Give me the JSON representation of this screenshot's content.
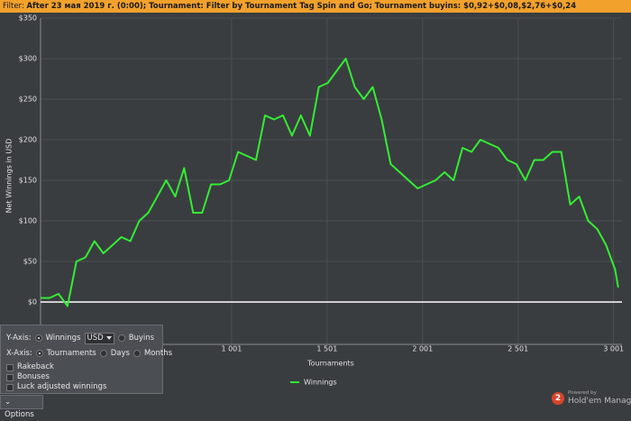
{
  "filter_bar": {
    "label": "Filter:",
    "text": "After 23 мая 2019 г. (0:00); Tournament: Filter by Tournament Tag  Spin and Go; Tournament buyins: $0,92+$0,08,$2,76+$0,24"
  },
  "chart_data": {
    "type": "line",
    "ylabel": "Net Winnings in USD",
    "xlabel": "Tournaments",
    "x": [
      1,
      48,
      95,
      142,
      189,
      236,
      283,
      330,
      377,
      424,
      471,
      518,
      565,
      612,
      659,
      706,
      753,
      800,
      847,
      894,
      941,
      988,
      1035,
      1082,
      1129,
      1176,
      1223,
      1270,
      1317,
      1364,
      1411,
      1458,
      1505,
      1552,
      1599,
      1646,
      1693,
      1740,
      1787,
      1834,
      1881,
      1928,
      1975,
      2022,
      2069,
      2116,
      2163,
      2210,
      2257,
      2304,
      2351,
      2398,
      2445,
      2492,
      2539,
      2586,
      2633,
      2680,
      2727,
      2774,
      2821,
      2868,
      2915,
      2962,
      3009,
      3025
    ],
    "series": [
      {
        "name": "Winnings",
        "color": "#33ee33",
        "values": [
          5,
          5,
          10,
          -5,
          50,
          55,
          75,
          60,
          70,
          80,
          75,
          100,
          110,
          130,
          150,
          130,
          165,
          110,
          110,
          145,
          145,
          150,
          185,
          180,
          175,
          230,
          225,
          230,
          205,
          230,
          205,
          265,
          270,
          285,
          300,
          265,
          250,
          265,
          225,
          170,
          160,
          150,
          140,
          145,
          150,
          160,
          150,
          190,
          185,
          200,
          195,
          190,
          175,
          170,
          150,
          175,
          175,
          185,
          185,
          120,
          130,
          100,
          90,
          70,
          40,
          18
        ]
      }
    ],
    "xlim": [
      1,
      3045
    ],
    "ylim": [
      0,
      350
    ],
    "xticks": [
      {
        "value": 1001,
        "label": "1 001"
      },
      {
        "value": 1501,
        "label": "1 501"
      },
      {
        "value": 2001,
        "label": "2 001"
      },
      {
        "value": 2501,
        "label": "2 501"
      },
      {
        "value": 3001,
        "label": "3 001"
      }
    ],
    "yticks": [
      {
        "value": 350,
        "label": "$350"
      },
      {
        "value": 300,
        "label": "$300"
      },
      {
        "value": 250,
        "label": "$250"
      },
      {
        "value": 200,
        "label": "$200"
      },
      {
        "value": 150,
        "label": "$150"
      },
      {
        "value": 100,
        "label": "$100"
      },
      {
        "value": 50,
        "label": "$50"
      },
      {
        "value": 0,
        "label": "$0"
      }
    ],
    "grid": true,
    "legend": "bottom"
  },
  "options_panel": {
    "y_axis_label": "Y-Axis:",
    "y_winnings": "Winnings",
    "currency": "USD",
    "y_buyins": "Buyins",
    "x_axis_label": "X-Axis:",
    "x_tournaments": "Tournaments",
    "x_days": "Days",
    "x_months": "Months",
    "rakeback": "Rakeback",
    "bonuses": "Bonuses",
    "luck_adjusted": "Luck adjusted winnings"
  },
  "options_button": "Options",
  "brand": {
    "logo": "2",
    "powered_by": "Powered by",
    "name": "Hold'em Manager"
  }
}
